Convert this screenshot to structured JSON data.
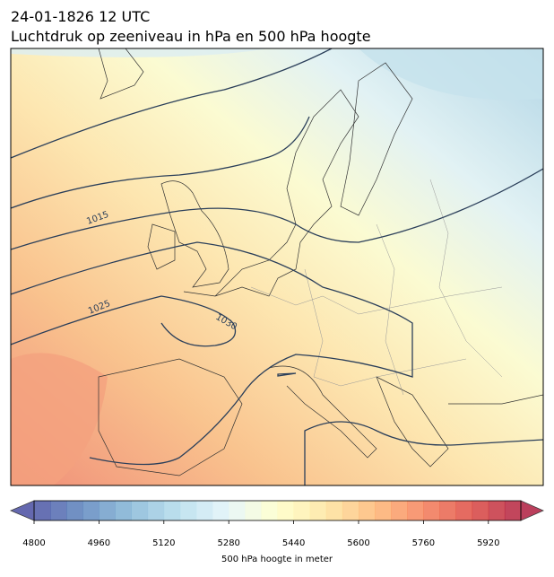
{
  "header": {
    "date_line": "24-01-1826 12 UTC",
    "title": "Luchtdruk op zeeniveau in hPa en 500 hPa hoogte"
  },
  "map": {
    "contour_labels": [
      "1015",
      "1025",
      "1030"
    ]
  },
  "colorbar": {
    "label": "500 hPa hoogte in meter",
    "lim": [
      4800,
      6000
    ],
    "step": 40,
    "colormap": "RdYlBu_r",
    "ticks": [
      4800,
      4960,
      5120,
      5280,
      5440,
      5600,
      5760,
      5920
    ]
  }
}
